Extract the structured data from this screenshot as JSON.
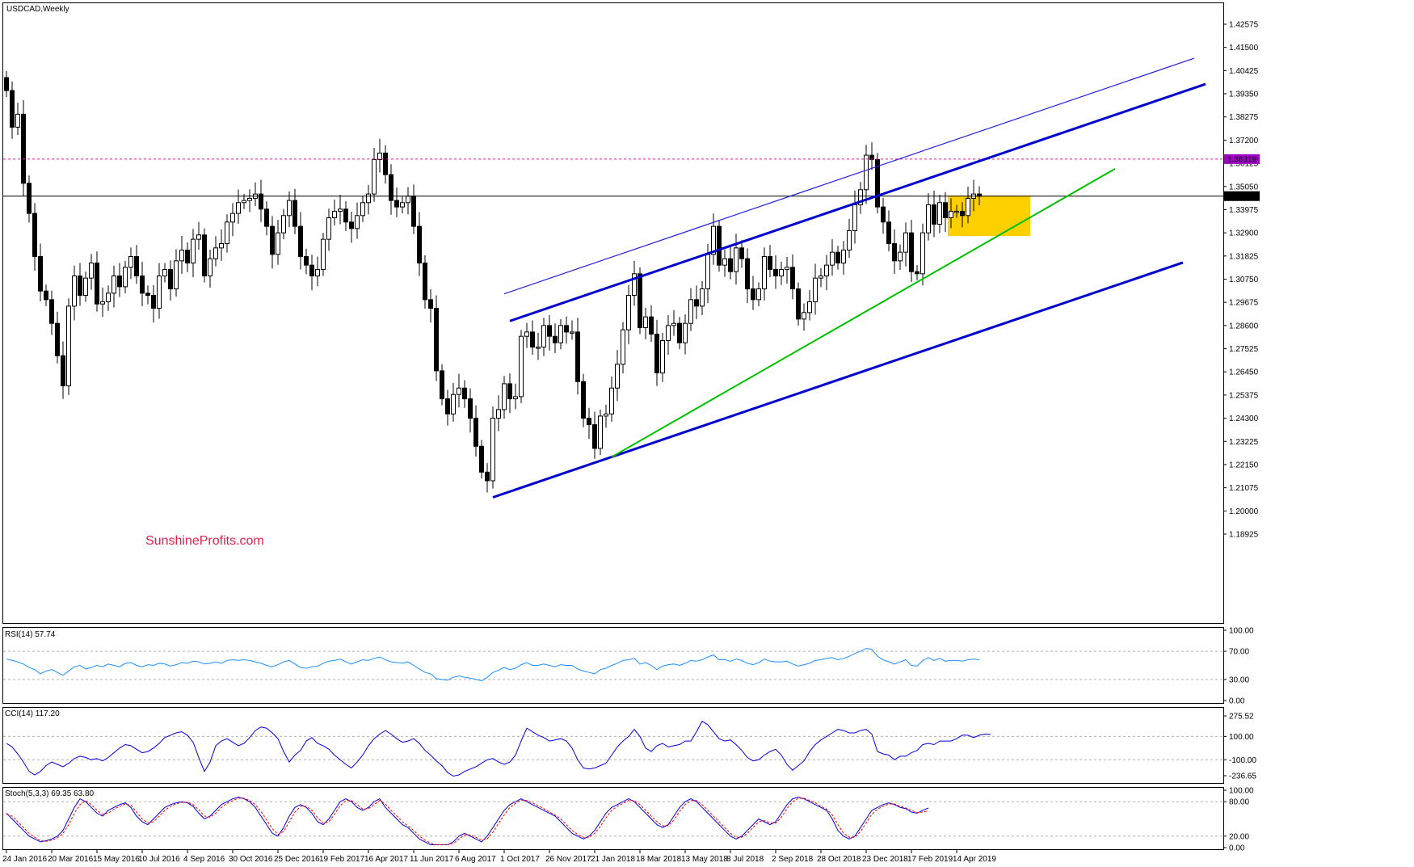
{
  "chart_data": [
    {
      "type": "candlestick",
      "title": "USDCAD,Weekly",
      "watermark": "SunshineProfits.com",
      "watermark_color": "#e8204a",
      "ylim": [
        1.1825,
        1.4315
      ],
      "y_ticks": [
        "1.42575",
        "1.41500",
        "1.40425",
        "1.39350",
        "1.38275",
        "1.37200",
        "1.36125",
        "1.35050",
        "1.33975",
        "1.32900",
        "1.31825",
        "1.30750",
        "1.29675",
        "1.28600",
        "1.27525",
        "1.26450",
        "1.25375",
        "1.24300",
        "1.23225",
        "1.22150",
        "1.21075",
        "1.20000",
        "1.18925"
      ],
      "current_price": "1.34602",
      "marked_level": "1.36319",
      "marked_level_color": "#a000c8",
      "x_labels": [
        "24 Jan 2016",
        "20 Mar 2016",
        "15 May 2016",
        "10 Jul 2016",
        "4 Sep 2016",
        "30 Oct 2016",
        "25 Dec 2016",
        "19 Feb 2017",
        "16 Apr 2017",
        "11 Jun 2017",
        "6 Aug 2017",
        "1 Oct 2017",
        "26 Nov 2017",
        "21 Jan 2018",
        "18 Mar 2018",
        "13 May 2018",
        "8 Jul 2018",
        "2 Sep 2018",
        "28 Oct 2018",
        "23 Dec 2018",
        "17 Feb 2019",
        "14 Apr 2019"
      ],
      "closes": [
        1.395,
        1.378,
        1.384,
        1.352,
        1.338,
        1.318,
        1.302,
        1.298,
        1.287,
        1.272,
        1.258,
        1.295,
        1.309,
        1.3,
        1.308,
        1.315,
        1.296,
        1.297,
        1.301,
        1.309,
        1.304,
        1.313,
        1.318,
        1.309,
        1.301,
        1.3,
        1.294,
        1.309,
        1.312,
        1.303,
        1.316,
        1.321,
        1.315,
        1.326,
        1.328,
        1.309,
        1.317,
        1.322,
        1.324,
        1.334,
        1.338,
        1.343,
        1.344,
        1.345,
        1.347,
        1.34,
        1.332,
        1.319,
        1.329,
        1.337,
        1.344,
        1.332,
        1.318,
        1.314,
        1.309,
        1.312,
        1.326,
        1.336,
        1.339,
        1.34,
        1.334,
        1.331,
        1.337,
        1.343,
        1.347,
        1.363,
        1.366,
        1.356,
        1.344,
        1.341,
        1.343,
        1.346,
        1.332,
        1.315,
        1.298,
        1.294,
        1.265,
        1.252,
        1.245,
        1.254,
        1.257,
        1.252,
        1.243,
        1.23,
        1.218,
        1.214,
        1.243,
        1.247,
        1.259,
        1.252,
        1.253,
        1.281,
        1.283,
        1.276,
        1.276,
        1.286,
        1.281,
        1.278,
        1.286,
        1.283,
        1.283,
        1.26,
        1.243,
        1.24,
        1.229,
        1.244,
        1.245,
        1.257,
        1.268,
        1.284,
        1.3,
        1.31,
        1.285,
        1.29,
        1.282,
        1.264,
        1.279,
        1.286,
        1.287,
        1.278,
        1.287,
        1.298,
        1.295,
        1.303,
        1.319,
        1.332,
        1.314,
        1.317,
        1.311,
        1.322,
        1.317,
        1.303,
        1.298,
        1.303,
        1.318,
        1.312,
        1.309,
        1.312,
        1.313,
        1.303,
        1.289,
        1.292,
        1.297,
        1.308,
        1.309,
        1.314,
        1.32,
        1.315,
        1.321,
        1.33,
        1.342,
        1.349,
        1.365,
        1.363,
        1.341,
        1.334,
        1.324,
        1.316,
        1.32,
        1.329,
        1.311,
        1.31,
        1.329,
        1.342,
        1.333,
        1.343,
        1.336,
        1.339,
        1.339,
        1.337,
        1.345,
        1.347,
        1.346
      ],
      "trendlines": [
        {
          "from": [
            "6 Aug 2017",
            1.2063
          ],
          "to": [
            "2019-09",
            1.3152
          ],
          "color": "#0000cc",
          "role": "channel-bottom"
        },
        {
          "from": [
            "1 Oct 2017",
            1.2881
          ],
          "to": [
            "2019-10",
            1.398
          ],
          "color": "#0000cc",
          "role": "channel-top"
        },
        {
          "from": [
            "1 Oct 2017",
            1.3007
          ],
          "to": [
            "2019-09",
            1.41
          ],
          "color": "#0000cc",
          "role": "outer-line"
        },
        {
          "from": [
            "21 Jan 2018",
            1.225
          ],
          "to": [
            "2019-07",
            1.3587
          ],
          "color": "#00c000",
          "role": "support"
        }
      ],
      "highlight_zone": {
        "from": "10 Feb 2019",
        "to": "2 Jun 2019",
        "y_range": [
          1.3275,
          1.3463
        ],
        "color": "#ffcc00"
      }
    },
    {
      "type": "line",
      "title": "RSI(14) 57.74",
      "ylim": [
        0,
        100
      ],
      "y_ticks": [
        "100.00",
        "70.00",
        "30.00",
        "0.00"
      ],
      "levels": [
        70,
        30
      ],
      "line_color": "#1e90ff",
      "values": [
        59,
        57,
        55,
        52,
        47,
        44,
        38,
        42,
        44,
        40,
        36,
        42,
        48,
        50,
        45,
        47,
        50,
        48,
        52,
        50,
        48,
        53,
        54,
        50,
        48,
        51,
        50,
        53,
        52,
        49,
        51,
        54,
        53,
        56,
        55,
        52,
        53,
        55,
        53,
        57,
        58,
        57,
        58,
        57,
        55,
        53,
        50,
        48,
        51,
        55,
        57,
        52,
        47,
        46,
        48,
        49,
        53,
        56,
        57,
        59,
        55,
        52,
        55,
        58,
        57,
        60,
        62,
        58,
        55,
        54,
        53,
        55,
        50,
        45,
        40,
        38,
        31,
        30,
        29,
        33,
        35,
        33,
        32,
        30,
        28,
        33,
        40,
        43,
        47,
        44,
        46,
        51,
        54,
        50,
        50,
        52,
        50,
        48,
        51,
        50,
        50,
        45,
        42,
        40,
        38,
        44,
        46,
        50,
        53,
        57,
        58,
        60,
        52,
        54,
        50,
        44,
        49,
        51,
        52,
        50,
        53,
        57,
        56,
        58,
        62,
        65,
        58,
        58,
        56,
        59,
        57,
        53,
        51,
        54,
        59,
        56,
        55,
        55,
        56,
        52,
        49,
        51,
        53,
        57,
        58,
        60,
        61,
        58,
        60,
        63,
        67,
        70,
        74,
        73,
        63,
        58,
        55,
        52,
        55,
        58,
        50,
        49,
        57,
        61,
        57,
        60,
        56,
        57,
        57,
        56,
        58,
        59,
        58
      ]
    },
    {
      "type": "line",
      "title": "CCI(14) 117.20",
      "ylim": [
        -320,
        320
      ],
      "y_ticks": [
        "275.52",
        "100.00",
        "-100.00",
        "-236.65"
      ],
      "levels": [
        100,
        -100
      ],
      "line_color": "#0000e0",
      "values": [
        40,
        10,
        -50,
        -120,
        -200,
        -230,
        -200,
        -150,
        -120,
        -140,
        -160,
        -130,
        -90,
        -70,
        -80,
        -100,
        -90,
        -110,
        -80,
        -40,
        0,
        30,
        20,
        -10,
        -40,
        -30,
        0,
        40,
        90,
        110,
        130,
        140,
        110,
        50,
        -80,
        -200,
        -120,
        20,
        60,
        80,
        50,
        20,
        40,
        90,
        150,
        180,
        170,
        130,
        80,
        -30,
        -120,
        -60,
        -20,
        60,
        90,
        40,
        20,
        -10,
        -60,
        -100,
        -140,
        -170,
        -120,
        -60,
        20,
        80,
        120,
        150,
        120,
        80,
        50,
        60,
        80,
        40,
        -20,
        -60,
        -110,
        -150,
        -210,
        -240,
        -230,
        -200,
        -180,
        -160,
        -130,
        -100,
        -90,
        -120,
        -140,
        -120,
        -60,
        60,
        170,
        140,
        110,
        90,
        60,
        70,
        80,
        60,
        0,
        -100,
        -170,
        -180,
        -170,
        -150,
        -130,
        -60,
        10,
        60,
        100,
        160,
        100,
        0,
        -30,
        20,
        40,
        10,
        20,
        30,
        60,
        60,
        140,
        230,
        200,
        140,
        80,
        60,
        70,
        30,
        -20,
        -80,
        -110,
        -100,
        -60,
        -30,
        -10,
        -60,
        -140,
        -190,
        -150,
        -110,
        -30,
        30,
        70,
        100,
        130,
        160,
        150,
        130,
        130,
        150,
        160,
        120,
        -30,
        -50,
        -60,
        -100,
        -70,
        -70,
        -40,
        -20,
        30,
        40,
        30,
        60,
        60,
        60,
        80,
        110,
        110,
        90,
        110,
        120,
        117
      ]
    },
    {
      "type": "line",
      "title": "Stoch(5,3,3) 69.35 63.80",
      "ylim": [
        0,
        100
      ],
      "y_ticks": [
        "100.00",
        "80.00",
        "20.00",
        "0.00"
      ],
      "levels": [
        80,
        20
      ],
      "series": [
        {
          "color": "#0000e0",
          "values": [
            60,
            50,
            40,
            30,
            20,
            15,
            10,
            12,
            15,
            20,
            30,
            50,
            70,
            85,
            80,
            70,
            60,
            55,
            65,
            70,
            75,
            78,
            70,
            55,
            45,
            40,
            50,
            60,
            70,
            75,
            78,
            80,
            78,
            72,
            60,
            50,
            55,
            65,
            75,
            80,
            85,
            88,
            85,
            80,
            70,
            55,
            40,
            25,
            20,
            35,
            55,
            70,
            75,
            70,
            60,
            45,
            40,
            50,
            65,
            80,
            85,
            80,
            70,
            65,
            70,
            80,
            85,
            70,
            60,
            50,
            40,
            35,
            25,
            15,
            10,
            5,
            5,
            5,
            5,
            10,
            20,
            25,
            20,
            15,
            10,
            20,
            35,
            50,
            65,
            75,
            80,
            85,
            80,
            75,
            70,
            65,
            60,
            55,
            45,
            35,
            25,
            20,
            15,
            20,
            30,
            45,
            60,
            70,
            75,
            80,
            85,
            80,
            70,
            60,
            50,
            40,
            35,
            40,
            55,
            70,
            80,
            85,
            80,
            70,
            60,
            50,
            40,
            30,
            20,
            15,
            20,
            30,
            40,
            50,
            45,
            40,
            45,
            60,
            75,
            85,
            88,
            85,
            80,
            75,
            70,
            65,
            50,
            30,
            20,
            15,
            20,
            35,
            50,
            65,
            70,
            75,
            78,
            75,
            70,
            68,
            62,
            60,
            65,
            69
          ]
        },
        {
          "color": "#ff0000",
          "values": [
            58,
            55,
            45,
            35,
            25,
            18,
            12,
            11,
            13,
            17,
            25,
            40,
            60,
            75,
            82,
            75,
            65,
            58,
            60,
            67,
            72,
            76,
            74,
            62,
            50,
            43,
            45,
            55,
            65,
            72,
            76,
            79,
            79,
            75,
            66,
            55,
            53,
            60,
            70,
            77,
            82,
            86,
            86,
            82,
            75,
            63,
            48,
            33,
            23,
            28,
            45,
            62,
            72,
            72,
            65,
            52,
            43,
            45,
            58,
            73,
            82,
            82,
            75,
            67,
            68,
            75,
            82,
            76,
            65,
            55,
            45,
            38,
            30,
            20,
            13,
            8,
            5,
            5,
            5,
            7,
            15,
            22,
            22,
            18,
            13,
            15,
            27,
            42,
            57,
            70,
            77,
            83,
            82,
            78,
            73,
            68,
            62,
            57,
            50,
            40,
            30,
            23,
            18,
            18,
            25,
            37,
            52,
            65,
            72,
            77,
            82,
            82,
            75,
            65,
            55,
            45,
            38,
            38,
            48,
            63,
            75,
            82,
            82,
            75,
            65,
            55,
            45,
            35,
            25,
            18,
            18,
            25,
            35,
            45,
            47,
            43,
            43,
            53,
            68,
            80,
            86,
            86,
            82,
            78,
            72,
            67,
            57,
            40,
            25,
            18,
            18,
            28,
            43,
            58,
            67,
            72,
            76,
            76,
            72,
            69,
            65,
            61,
            62,
            64
          ]
        }
      ]
    }
  ]
}
